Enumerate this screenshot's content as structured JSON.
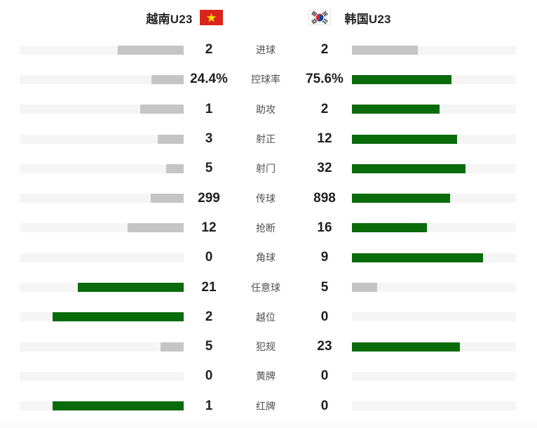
{
  "header": {
    "home": {
      "name": "越南U23",
      "flag_icon": "vietnam-flag"
    },
    "away": {
      "name": "韩国U23",
      "flag_icon": "south-korea-flag"
    }
  },
  "colors": {
    "lead_fill": "#0a6b0b",
    "trail_fill": "#c5c5c5",
    "track": "#f5f5f5",
    "value_text": "#1f1f1f",
    "label_text": "#4f4f4f",
    "vietnam_flag_red": "#da251d",
    "vietnam_flag_star": "#ffdf00",
    "korea_taegeuk_red": "#cd2e3a",
    "korea_taegeuk_blue": "#0047a0"
  },
  "chart_data": {
    "type": "bar",
    "orientation": "horizontal-paired-center-out",
    "max_fill_fraction": 0.8,
    "note": "fill width = value / (home+away) * 80% of track; leading side green, trailing or tied side gray",
    "categories": [
      "进球",
      "控球率",
      "助攻",
      "射正",
      "射门",
      "传球",
      "抢断",
      "角球",
      "任意球",
      "越位",
      "犯规",
      "黄牌",
      "红牌"
    ],
    "series": [
      {
        "name": "越南U23",
        "values": [
          2,
          24.4,
          1,
          3,
          5,
          299,
          12,
          0,
          21,
          2,
          5,
          0,
          1
        ],
        "display": [
          "2",
          "24.4%",
          "1",
          "3",
          "5",
          "299",
          "12",
          "0",
          "21",
          "2",
          "5",
          "0",
          "1"
        ]
      },
      {
        "name": "韩国U23",
        "values": [
          2,
          75.6,
          2,
          12,
          32,
          898,
          16,
          9,
          5,
          0,
          23,
          0,
          0
        ],
        "display": [
          "2",
          "75.6%",
          "2",
          "12",
          "32",
          "898",
          "16",
          "9",
          "5",
          "0",
          "23",
          "0",
          "0"
        ]
      }
    ]
  }
}
